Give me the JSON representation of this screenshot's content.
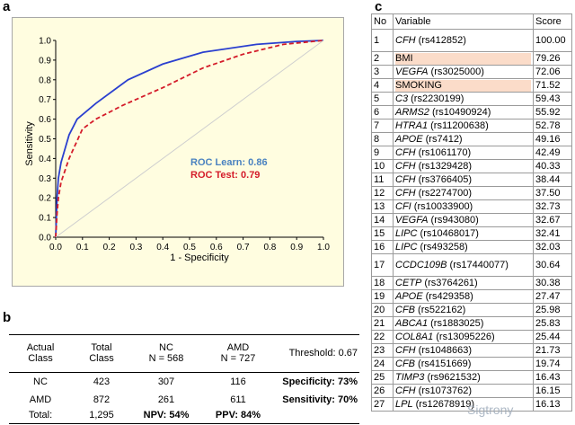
{
  "panels": {
    "a": "a",
    "b": "b",
    "c": "c"
  },
  "chart_data": {
    "type": "line",
    "xlabel": "1 - Specificity",
    "ylabel": "Sensitivity",
    "xlim": [
      0,
      1
    ],
    "ylim": [
      0,
      1
    ],
    "ticks": [
      "0.0",
      "0.1",
      "0.2",
      "0.3",
      "0.4",
      "0.5",
      "0.6",
      "0.7",
      "0.8",
      "0.9",
      "1.0"
    ],
    "grid": false,
    "series": [
      {
        "name": "ROC Learn: 0.86",
        "color": "#2a3fcf",
        "style": "solid",
        "x": [
          0,
          0.005,
          0.01,
          0.02,
          0.05,
          0.08,
          0.15,
          0.27,
          0.4,
          0.55,
          0.75,
          0.9,
          1.0
        ],
        "y": [
          0,
          0.2,
          0.3,
          0.38,
          0.52,
          0.6,
          0.68,
          0.8,
          0.88,
          0.94,
          0.98,
          0.995,
          1.0
        ]
      },
      {
        "name": "ROC Test: 0.79",
        "color": "#d41c2a",
        "style": "dashed",
        "x": [
          0,
          0.005,
          0.01,
          0.02,
          0.05,
          0.1,
          0.15,
          0.25,
          0.4,
          0.55,
          0.7,
          0.85,
          1.0
        ],
        "y": [
          0,
          0.12,
          0.2,
          0.28,
          0.4,
          0.55,
          0.6,
          0.67,
          0.76,
          0.86,
          0.93,
          0.98,
          1.0
        ]
      },
      {
        "name": "",
        "color": "#cfcfcf",
        "style": "diagonal",
        "x": [
          0,
          1
        ],
        "y": [
          0,
          1
        ]
      }
    ],
    "legend": [
      {
        "text": "ROC Learn: 0.86",
        "color": "#4a82c0"
      },
      {
        "text": "ROC Test: 0.79",
        "color": "#d41c2a"
      }
    ]
  },
  "confusion": {
    "headers": [
      "Actual\nClass",
      "Total\nClass",
      "NC\nN = 568",
      "AMD\nN = 727",
      "Threshold: 0.67"
    ],
    "rows": [
      [
        "NC",
        "423",
        "307",
        "116",
        "Specificity: 73%"
      ],
      [
        "AMD",
        "872",
        "261",
        "611",
        "Sensitivity: 70%"
      ],
      [
        "Total:",
        "1,295",
        "NPV: 54%",
        "PPV: 84%",
        ""
      ]
    ]
  },
  "variables": {
    "headers": [
      "No",
      "Variable",
      "Score"
    ],
    "rows": [
      {
        "no": "1",
        "gene": "CFH",
        "rest": " (rs412852)",
        "score": "100.00"
      },
      {
        "no": "2",
        "gene": "",
        "rest": "BMI",
        "score": "79.26",
        "hl": true
      },
      {
        "no": "3",
        "gene": "VEGFA",
        "rest": " (rs3025000)",
        "score": "72.06"
      },
      {
        "no": "4",
        "gene": "",
        "rest": "SMOKING",
        "score": "71.52",
        "hl": true
      },
      {
        "no": "5",
        "gene": "C3",
        "rest": " (rs2230199)",
        "score": "59.43"
      },
      {
        "no": "6",
        "gene": "ARMS2",
        "rest": " (rs10490924)",
        "score": "55.92"
      },
      {
        "no": "7",
        "gene": "HTRA1",
        "rest": " (rs11200638)",
        "score": "52.78"
      },
      {
        "no": "8",
        "gene": "APOE",
        "rest": " (rs7412)",
        "score": "49.16"
      },
      {
        "no": "9",
        "gene": "CFH",
        "rest": " (rs1061170)",
        "score": "42.49"
      },
      {
        "no": "10",
        "gene": "CFH",
        "rest": " (rs1329428)",
        "score": "40.33"
      },
      {
        "no": "11",
        "gene": "CFH",
        "rest": " (rs3766405)",
        "score": "38.44"
      },
      {
        "no": "12",
        "gene": "CFH",
        "rest": " (rs2274700)",
        "score": "37.50"
      },
      {
        "no": "13",
        "gene": "CFI",
        "rest": " (rs10033900)",
        "score": "32.73"
      },
      {
        "no": "14",
        "gene": "VEGFA",
        "rest": " (rs943080)",
        "score": "32.67"
      },
      {
        "no": "15",
        "gene": "LIPC",
        "rest": " (rs10468017)",
        "score": "32.41"
      },
      {
        "no": "16",
        "gene": "LIPC",
        "rest": " (rs493258)",
        "score": "32.03"
      },
      {
        "no": "17",
        "gene": "CCDC109B",
        "rest": " (rs17440077)",
        "score": "30.64",
        "xtall": true
      },
      {
        "no": "18",
        "gene": "CETP",
        "rest": " (rs3764261)",
        "score": "30.38"
      },
      {
        "no": "19",
        "gene": "APOE",
        "rest": " (rs429358)",
        "score": "27.47"
      },
      {
        "no": "20",
        "gene": "CFB",
        "rest": " (rs522162)",
        "score": "25.98"
      },
      {
        "no": "21",
        "gene": "ABCA1",
        "rest": " (rs1883025)",
        "score": "25.83"
      },
      {
        "no": "22",
        "gene": "COL8A1",
        "rest": " (rs13095226)",
        "score": "25.44"
      },
      {
        "no": "23",
        "gene": "CFH",
        "rest": " (rs1048663)",
        "score": "21.73"
      },
      {
        "no": "24",
        "gene": "CFB",
        "rest": " (rs4151669)",
        "score": "19.74"
      },
      {
        "no": "25",
        "gene": "TIMP3",
        "rest": " (rs9621532)",
        "score": "16.43"
      },
      {
        "no": "26",
        "gene": "CFH",
        "rest": " (rs1073762)",
        "score": "16.15"
      },
      {
        "no": "27",
        "gene": "LPL",
        "rest": " (rs12678919)",
        "score": "16.13"
      }
    ]
  },
  "watermark": "Sigtrony"
}
